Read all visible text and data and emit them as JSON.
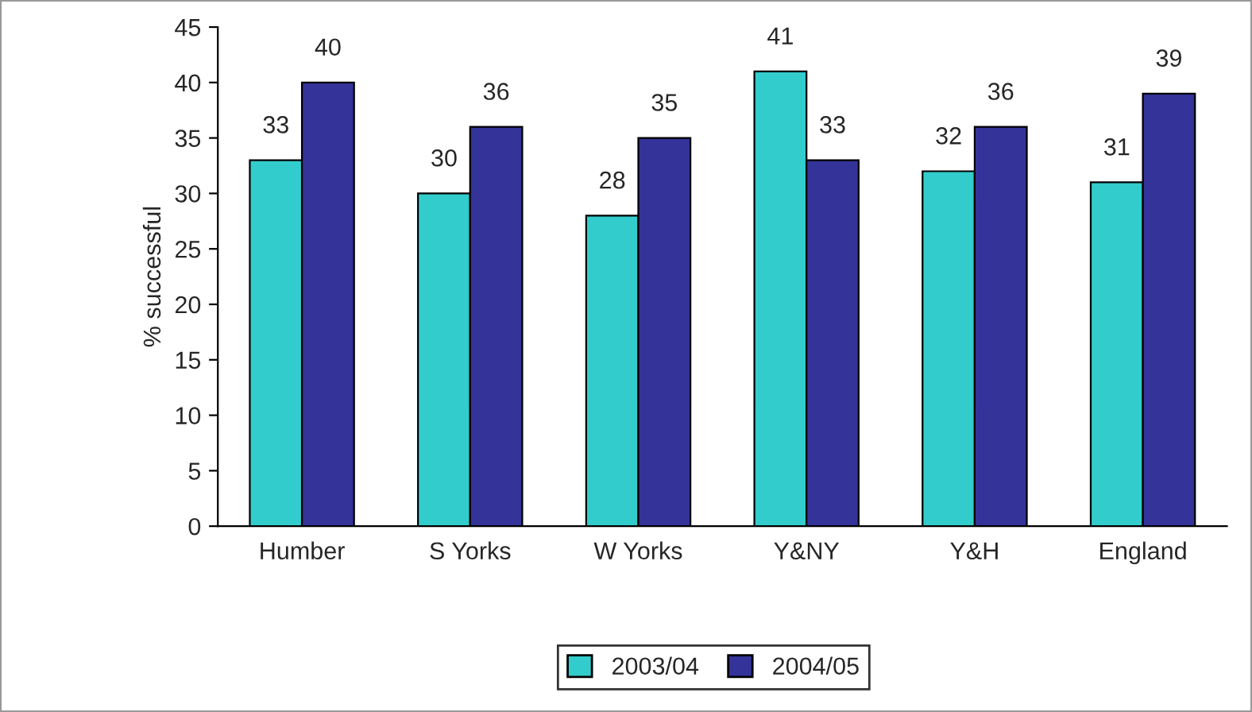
{
  "chart_data": {
    "type": "bar",
    "ylabel": "% successful",
    "categories": [
      "Humber",
      "S Yorks",
      "W Yorks",
      "Y&NY",
      "Y&H",
      "England"
    ],
    "series": [
      {
        "name": "2003/04",
        "color": "#33cccc",
        "values": [
          33,
          30,
          28,
          41,
          32,
          31
        ]
      },
      {
        "name": "2004/05",
        "color": "#333399",
        "values": [
          40,
          36,
          35,
          33,
          36,
          39
        ]
      }
    ],
    "ylim": [
      0,
      45
    ],
    "yticks": [
      0,
      5,
      10,
      15,
      20,
      25,
      30,
      35,
      40,
      45
    ],
    "data_labels": true,
    "grid": false,
    "legend": "bottom"
  }
}
